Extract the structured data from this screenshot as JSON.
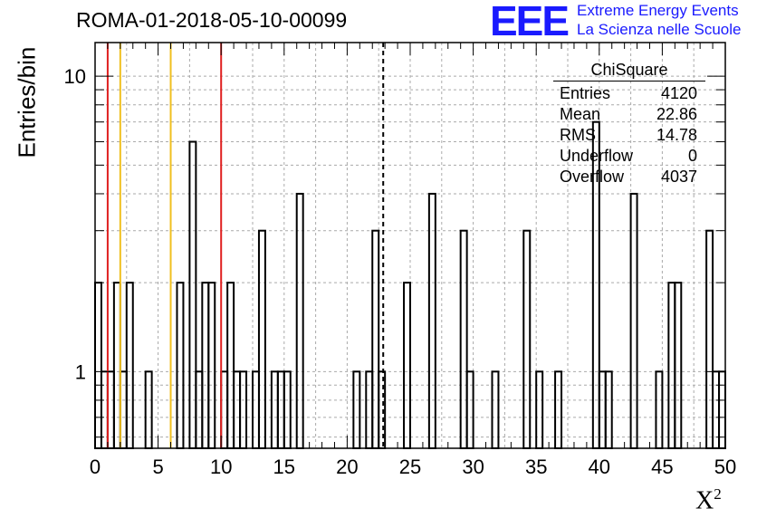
{
  "title": "ROMA-01-2018-05-10-00099",
  "logo": {
    "mark": "EEE",
    "line1": "Extreme Energy Events",
    "line2": "La Scienza nelle Scuole",
    "color": "#1a1aff"
  },
  "stats": {
    "name": "ChiSquare",
    "rows": [
      {
        "label": "Entries",
        "value": "4120"
      },
      {
        "label": "Mean",
        "value": "22.86"
      },
      {
        "label": "RMS",
        "value": "14.78"
      },
      {
        "label": "Underflow",
        "value": "0"
      },
      {
        "label": "Overflow",
        "value": "4037"
      }
    ]
  },
  "chart_data": {
    "type": "bar",
    "histogram": true,
    "xlabel": "X",
    "xlabel_sup": "2",
    "ylabel": "Entries/bin",
    "xlim": [
      0,
      50
    ],
    "ylim": [
      0.55,
      13
    ],
    "log_y": true,
    "grid": true,
    "x_ticks": [
      0,
      5,
      10,
      15,
      20,
      25,
      30,
      35,
      40,
      45,
      50
    ],
    "y_tick_labels": [
      1,
      10
    ],
    "bin_width": 0.5,
    "bins": [
      {
        "x": 0.0,
        "y": 2
      },
      {
        "x": 0.5,
        "y": 1
      },
      {
        "x": 1.0,
        "y": 1
      },
      {
        "x": 1.5,
        "y": 2
      },
      {
        "x": 2.0,
        "y": 1
      },
      {
        "x": 2.5,
        "y": 2
      },
      {
        "x": 4.0,
        "y": 1
      },
      {
        "x": 6.5,
        "y": 2
      },
      {
        "x": 7.5,
        "y": 6
      },
      {
        "x": 8.0,
        "y": 1
      },
      {
        "x": 8.5,
        "y": 2
      },
      {
        "x": 9.0,
        "y": 2
      },
      {
        "x": 10.0,
        "y": 1
      },
      {
        "x": 10.5,
        "y": 2
      },
      {
        "x": 11.0,
        "y": 1
      },
      {
        "x": 11.5,
        "y": 1
      },
      {
        "x": 12.5,
        "y": 1
      },
      {
        "x": 13.0,
        "y": 3
      },
      {
        "x": 14.0,
        "y": 1
      },
      {
        "x": 14.5,
        "y": 1
      },
      {
        "x": 15.0,
        "y": 1
      },
      {
        "x": 16.0,
        "y": 4
      },
      {
        "x": 20.5,
        "y": 1
      },
      {
        "x": 21.5,
        "y": 1
      },
      {
        "x": 22.0,
        "y": 3
      },
      {
        "x": 22.5,
        "y": 1
      },
      {
        "x": 24.5,
        "y": 2
      },
      {
        "x": 26.5,
        "y": 4
      },
      {
        "x": 29.0,
        "y": 3
      },
      {
        "x": 29.5,
        "y": 1
      },
      {
        "x": 31.5,
        "y": 1
      },
      {
        "x": 34.0,
        "y": 3
      },
      {
        "x": 35.0,
        "y": 1
      },
      {
        "x": 36.5,
        "y": 1
      },
      {
        "x": 39.5,
        "y": 7
      },
      {
        "x": 40.0,
        "y": 1
      },
      {
        "x": 40.5,
        "y": 1
      },
      {
        "x": 42.5,
        "y": 4
      },
      {
        "x": 44.5,
        "y": 1
      },
      {
        "x": 45.5,
        "y": 2
      },
      {
        "x": 46.0,
        "y": 2
      },
      {
        "x": 48.5,
        "y": 3
      },
      {
        "x": 49.0,
        "y": 1
      },
      {
        "x": 49.5,
        "y": 1
      }
    ],
    "vlines": [
      {
        "x": 1.0,
        "color": "#e02020",
        "style": "solid"
      },
      {
        "x": 2.0,
        "color": "#f0c020",
        "style": "solid"
      },
      {
        "x": 6.0,
        "color": "#f0c020",
        "style": "solid"
      },
      {
        "x": 10.0,
        "color": "#e02020",
        "style": "solid"
      },
      {
        "x": 22.86,
        "color": "#000000",
        "style": "dashed"
      }
    ]
  }
}
